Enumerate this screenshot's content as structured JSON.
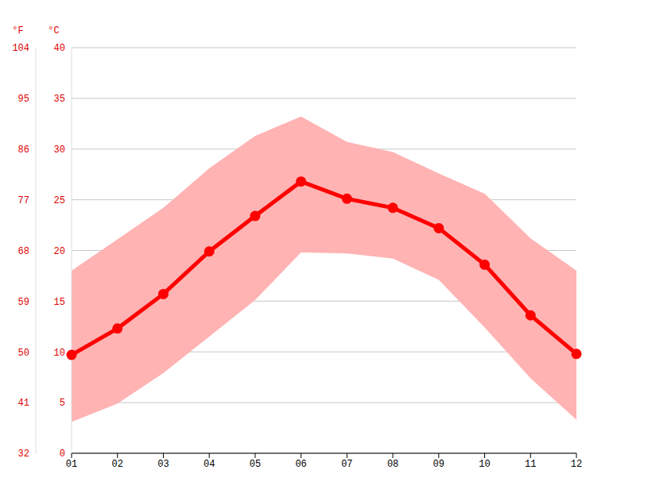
{
  "chart_data": {
    "type": "line",
    "categories": [
      "01",
      "02",
      "03",
      "04",
      "05",
      "06",
      "07",
      "08",
      "09",
      "10",
      "11",
      "12"
    ],
    "series": [
      {
        "type": "area",
        "color": "#ffb3b3",
        "low": [
          3.1,
          4.9,
          7.9,
          11.5,
          15.1,
          19.8,
          19.7,
          19.2,
          17.1,
          12.4,
          7.4,
          3.3
        ],
        "high": [
          18.0,
          21.1,
          24.2,
          28.1,
          31.3,
          33.2,
          30.7,
          29.7,
          27.6,
          25.6,
          21.2,
          18.0
        ]
      },
      {
        "type": "line",
        "color": "#ff0000",
        "marker": "circle",
        "values": [
          9.7,
          12.3,
          15.7,
          19.9,
          23.4,
          26.8,
          25.1,
          24.2,
          22.2,
          18.6,
          13.6,
          9.8
        ]
      }
    ],
    "y_label": "°C",
    "ylim": [
      0,
      40
    ],
    "yticks": [
      0,
      5,
      10,
      15,
      20,
      25,
      30,
      35,
      40
    ],
    "y2_label": "°F",
    "y2lim": [
      32,
      104
    ],
    "y2ticks": [
      32,
      41,
      50,
      59,
      68,
      77,
      86,
      95,
      104
    ],
    "grid": true
  }
}
